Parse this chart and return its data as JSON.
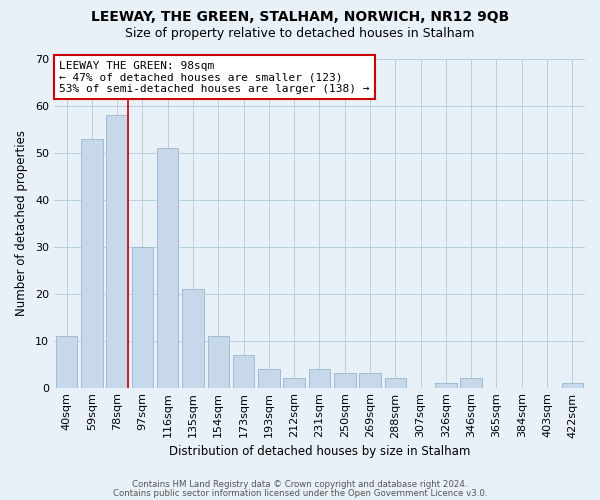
{
  "title": "LEEWAY, THE GREEN, STALHAM, NORWICH, NR12 9QB",
  "subtitle": "Size of property relative to detached houses in Stalham",
  "xlabel": "Distribution of detached houses by size in Stalham",
  "ylabel": "Number of detached properties",
  "bar_labels": [
    "40sqm",
    "59sqm",
    "78sqm",
    "97sqm",
    "116sqm",
    "135sqm",
    "154sqm",
    "173sqm",
    "193sqm",
    "212sqm",
    "231sqm",
    "250sqm",
    "269sqm",
    "288sqm",
    "307sqm",
    "326sqm",
    "346sqm",
    "365sqm",
    "384sqm",
    "403sqm",
    "422sqm"
  ],
  "bar_values": [
    11,
    53,
    58,
    30,
    51,
    21,
    11,
    7,
    4,
    2,
    4,
    3,
    3,
    2,
    0,
    1,
    2,
    0,
    0,
    0,
    1
  ],
  "bar_color": "#c8d8eb",
  "bar_edge_color": "#9ab5cc",
  "grid_color": "#b8cfe0",
  "background_color": "#e8f0f8",
  "vline_color": "#cc0000",
  "annotation_text": "LEEWAY THE GREEN: 98sqm\n← 47% of detached houses are smaller (123)\n53% of semi-detached houses are larger (138) →",
  "annotation_box_color": "#ffffff",
  "annotation_box_edge": "#cc0000",
  "ylim": [
    0,
    70
  ],
  "yticks": [
    0,
    10,
    20,
    30,
    40,
    50,
    60,
    70
  ],
  "footer1": "Contains HM Land Registry data © Crown copyright and database right 2024.",
  "footer2": "Contains public sector information licensed under the Open Government Licence v3.0."
}
